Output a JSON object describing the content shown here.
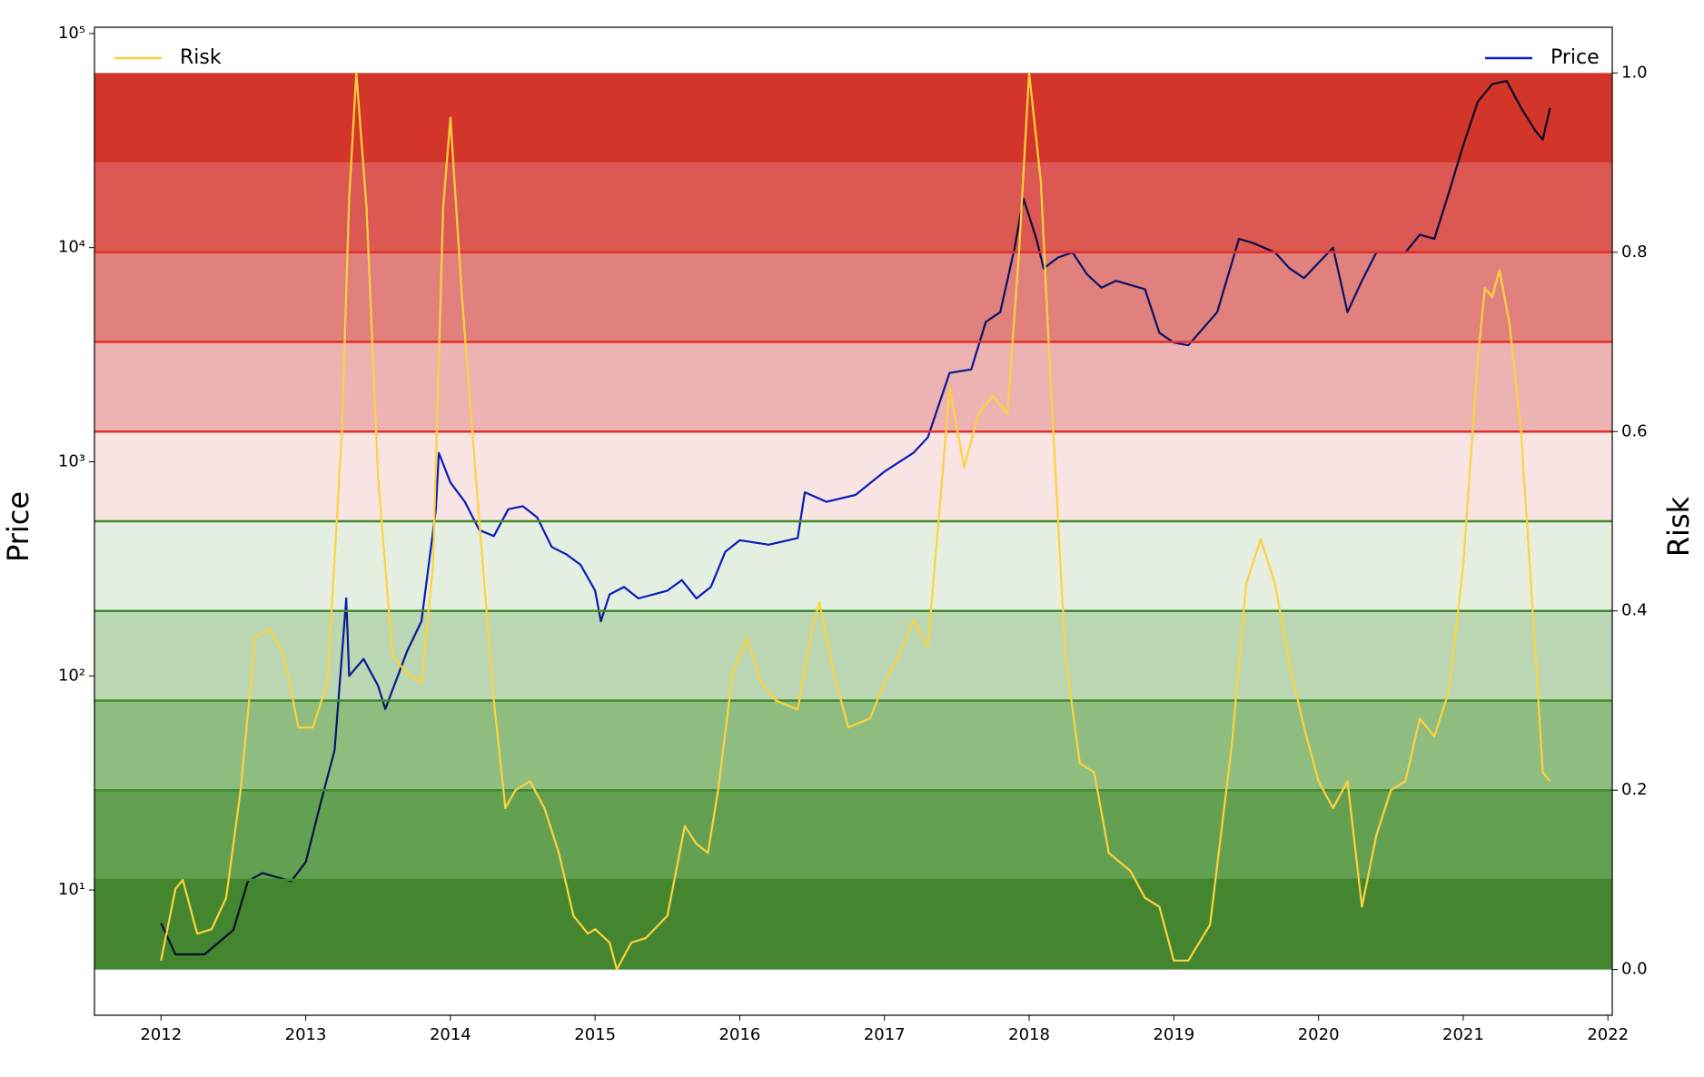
{
  "chart_data": {
    "type": "line",
    "ylabel": "Price",
    "y2label": "Risk",
    "xlim": [
      2011.54,
      2022.03
    ],
    "xticks": [
      2012,
      2013,
      2014,
      2015,
      2016,
      2017,
      2018,
      2019,
      2020,
      2021,
      2022
    ],
    "ylim": [
      2.6,
      107000
    ],
    "yscale": "log",
    "yticks": [
      {
        "value": 10,
        "label": "10¹"
      },
      {
        "value": 100,
        "label": "10²"
      },
      {
        "value": 1000,
        "label": "10³"
      },
      {
        "value": 10000,
        "label": "10⁴"
      },
      {
        "value": 100000,
        "label": "10⁵"
      }
    ],
    "y2lim": [
      -0.051,
      1.051
    ],
    "y2ticks": [
      {
        "value": 0,
        "label": "0.0"
      },
      {
        "value": 0.2,
        "label": "0.2"
      },
      {
        "value": 0.4,
        "label": "0.4"
      },
      {
        "value": 0.6,
        "label": "0.6"
      },
      {
        "value": 0.8,
        "label": "0.8"
      },
      {
        "value": 1,
        "label": "1.0"
      }
    ],
    "bands": [
      {
        "from": 0,
        "to": 0.1,
        "color": "#43862f"
      },
      {
        "from": 0.1,
        "to": 0.2,
        "color": "#64a052"
      },
      {
        "from": 0.2,
        "to": 0.3,
        "color": "#8fbc7f"
      },
      {
        "from": 0.3,
        "to": 0.4,
        "color": "#bbd7b3"
      },
      {
        "from": 0.4,
        "to": 0.5,
        "color": "#e4efe1"
      },
      {
        "from": 0.5,
        "to": 0.6,
        "color": "#f7e4e3"
      },
      {
        "from": 0.6,
        "to": 0.7,
        "color": "#ecb3b2"
      },
      {
        "from": 0.7,
        "to": 0.8,
        "color": "#e0817e"
      },
      {
        "from": 0.8,
        "to": 0.9,
        "color": "#db5853"
      },
      {
        "from": 0.9,
        "to": 1,
        "color": "#d3352b"
      }
    ],
    "band_lines": [
      {
        "value": 0.1,
        "color": "#3f8a2a"
      },
      {
        "value": 0.2,
        "color": "#3f8a2a"
      },
      {
        "value": 0.3,
        "color": "#3f8a2a"
      },
      {
        "value": 0.4,
        "color": "#3f8a2a"
      },
      {
        "value": 0.5,
        "color": "#3f8a2a"
      },
      {
        "value": 0.6,
        "color": "#e0302a"
      },
      {
        "value": 0.7,
        "color": "#e0302a"
      },
      {
        "value": 0.8,
        "color": "#e0302a"
      }
    ],
    "series": [
      {
        "name": "Price",
        "color": "#0a1fd0",
        "axis": "y",
        "legend": "upper right",
        "x": [
          2012.0,
          2012.1,
          2012.3,
          2012.5,
          2012.6,
          2012.7,
          2012.9,
          2013.0,
          2013.1,
          2013.2,
          2013.28,
          2013.3,
          2013.4,
          2013.5,
          2013.55,
          2013.7,
          2013.8,
          2013.9,
          2013.92,
          2014.0,
          2014.1,
          2014.2,
          2014.3,
          2014.4,
          2014.5,
          2014.6,
          2014.7,
          2014.8,
          2014.9,
          2015.0,
          2015.04,
          2015.1,
          2015.2,
          2015.3,
          2015.5,
          2015.6,
          2015.7,
          2015.8,
          2015.9,
          2016.0,
          2016.2,
          2016.4,
          2016.45,
          2016.6,
          2016.8,
          2017.0,
          2017.2,
          2017.3,
          2017.45,
          2017.6,
          2017.7,
          2017.8,
          2017.9,
          2017.96,
          2018.05,
          2018.1,
          2018.2,
          2018.3,
          2018.4,
          2018.5,
          2018.6,
          2018.8,
          2018.9,
          2019.0,
          2019.1,
          2019.3,
          2019.45,
          2019.55,
          2019.7,
          2019.8,
          2019.9,
          2020.0,
          2020.1,
          2020.2,
          2020.3,
          2020.4,
          2020.6,
          2020.7,
          2020.8,
          2020.9,
          2021.0,
          2021.1,
          2021.2,
          2021.3,
          2021.4,
          2021.5,
          2021.55,
          2021.6
        ],
        "values": [
          7,
          5,
          5,
          6.5,
          11,
          12,
          11,
          13.5,
          25,
          45,
          230,
          100,
          120,
          90,
          70,
          130,
          180,
          600,
          1100,
          800,
          650,
          480,
          450,
          600,
          620,
          550,
          400,
          370,
          330,
          250,
          180,
          240,
          260,
          230,
          250,
          280,
          230,
          260,
          380,
          430,
          410,
          440,
          720,
          650,
          700,
          900,
          1100,
          1300,
          2600,
          2700,
          4500,
          5000,
          10000,
          17000,
          11000,
          8000,
          9000,
          9500,
          7500,
          6500,
          7000,
          6400,
          4000,
          3600,
          3500,
          5000,
          11000,
          10500,
          9500,
          8000,
          7200,
          8500,
          10000,
          5000,
          7000,
          9500,
          9500,
          11500,
          11000,
          18000,
          30000,
          48000,
          58000,
          60000,
          45000,
          35000,
          32000,
          45000
        ]
      },
      {
        "name": "Risk",
        "color": "#ffd23c",
        "axis": "y2",
        "legend": "upper left",
        "x": [
          2012.0,
          2012.1,
          2012.15,
          2012.25,
          2012.35,
          2012.45,
          2012.55,
          2012.65,
          2012.75,
          2012.85,
          2012.95,
          2013.05,
          2013.15,
          2013.25,
          2013.3,
          2013.35,
          2013.42,
          2013.5,
          2013.6,
          2013.7,
          2013.8,
          2013.88,
          2013.95,
          2014.0,
          2014.08,
          2014.2,
          2014.3,
          2014.38,
          2014.45,
          2014.55,
          2014.65,
          2014.75,
          2014.85,
          2014.95,
          2015.0,
          2015.1,
          2015.15,
          2015.25,
          2015.35,
          2015.5,
          2015.62,
          2015.7,
          2015.78,
          2015.85,
          2015.95,
          2016.05,
          2016.15,
          2016.25,
          2016.4,
          2016.5,
          2016.55,
          2016.65,
          2016.75,
          2016.9,
          2017.0,
          2017.1,
          2017.2,
          2017.3,
          2017.4,
          2017.45,
          2017.55,
          2017.65,
          2017.75,
          2017.85,
          2017.93,
          2018.0,
          2018.08,
          2018.15,
          2018.25,
          2018.35,
          2018.45,
          2018.55,
          2018.7,
          2018.8,
          2018.9,
          2019.0,
          2019.1,
          2019.25,
          2019.4,
          2019.5,
          2019.6,
          2019.7,
          2019.8,
          2019.9,
          2020.0,
          2020.1,
          2020.2,
          2020.3,
          2020.4,
          2020.5,
          2020.6,
          2020.7,
          2020.8,
          2020.9,
          2021.0,
          2021.1,
          2021.15,
          2021.2,
          2021.25,
          2021.32,
          2021.4,
          2021.5,
          2021.55,
          2021.6
        ],
        "values": [
          0.01,
          0.09,
          0.1,
          0.04,
          0.045,
          0.08,
          0.2,
          0.37,
          0.38,
          0.35,
          0.27,
          0.27,
          0.32,
          0.6,
          0.86,
          1.0,
          0.85,
          0.55,
          0.35,
          0.33,
          0.32,
          0.45,
          0.85,
          0.95,
          0.75,
          0.5,
          0.3,
          0.18,
          0.2,
          0.21,
          0.18,
          0.13,
          0.06,
          0.04,
          0.045,
          0.03,
          0.0,
          0.03,
          0.035,
          0.06,
          0.16,
          0.14,
          0.13,
          0.2,
          0.33,
          0.37,
          0.32,
          0.3,
          0.29,
          0.38,
          0.41,
          0.33,
          0.27,
          0.28,
          0.32,
          0.35,
          0.39,
          0.36,
          0.55,
          0.65,
          0.56,
          0.62,
          0.64,
          0.62,
          0.8,
          1.0,
          0.88,
          0.65,
          0.35,
          0.23,
          0.22,
          0.13,
          0.11,
          0.08,
          0.07,
          0.01,
          0.01,
          0.05,
          0.25,
          0.43,
          0.48,
          0.43,
          0.34,
          0.27,
          0.21,
          0.18,
          0.21,
          0.07,
          0.15,
          0.2,
          0.21,
          0.28,
          0.26,
          0.31,
          0.45,
          0.68,
          0.76,
          0.75,
          0.78,
          0.72,
          0.6,
          0.35,
          0.22,
          0.21
        ]
      }
    ]
  }
}
